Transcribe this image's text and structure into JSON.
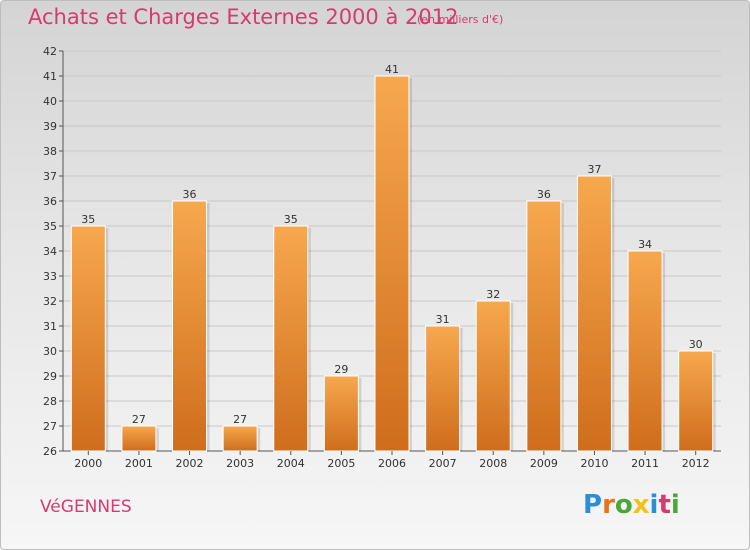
{
  "title": "Achats et Charges Externes 2000 à 2012",
  "subtitle": "(en milliers d'€)",
  "commune": "VéGENNES",
  "logo": {
    "letters": [
      "P",
      "r",
      "o",
      "x",
      "i",
      "t",
      "i"
    ],
    "colors": [
      "#2a8fd6",
      "#e8731b",
      "#4aa83a",
      "#f2c21a",
      "#2a8fd6",
      "#d63a6f",
      "#4aa83a"
    ]
  },
  "colors": {
    "bar_light": "#f7a84e",
    "bar_dark": "#cf6d1c",
    "title": "#d63a6f",
    "grid": "#c8c8c8"
  },
  "chart_data": {
    "type": "bar",
    "categories": [
      "2000",
      "2001",
      "2002",
      "2003",
      "2004",
      "2005",
      "2006",
      "2007",
      "2008",
      "2009",
      "2010",
      "2011",
      "2012"
    ],
    "values": [
      35,
      27,
      36,
      27,
      35,
      29,
      41,
      31,
      32,
      36,
      37,
      34,
      30
    ],
    "ylim": [
      26,
      42
    ],
    "yticks": [
      26,
      27,
      28,
      29,
      30,
      31,
      32,
      33,
      34,
      35,
      36,
      37,
      38,
      39,
      40,
      41,
      42
    ],
    "grid": true,
    "xlabel": "",
    "ylabel": ""
  }
}
